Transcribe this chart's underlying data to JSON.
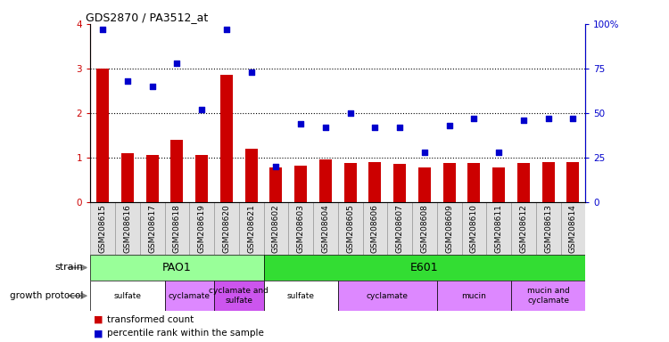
{
  "title": "GDS2870 / PA3512_at",
  "samples": [
    "GSM208615",
    "GSM208616",
    "GSM208617",
    "GSM208618",
    "GSM208619",
    "GSM208620",
    "GSM208621",
    "GSM208602",
    "GSM208603",
    "GSM208604",
    "GSM208605",
    "GSM208606",
    "GSM208607",
    "GSM208608",
    "GSM208609",
    "GSM208610",
    "GSM208611",
    "GSM208612",
    "GSM208613",
    "GSM208614"
  ],
  "red_values": [
    3.0,
    1.1,
    1.05,
    1.4,
    1.05,
    2.85,
    1.2,
    0.78,
    0.82,
    0.95,
    0.88,
    0.9,
    0.85,
    0.78,
    0.88,
    0.88,
    0.78,
    0.88,
    0.9,
    0.9
  ],
  "blue_values": [
    97,
    68,
    65,
    78,
    52,
    97,
    73,
    20,
    44,
    42,
    50,
    42,
    42,
    28,
    43,
    47,
    28,
    46,
    47,
    47
  ],
  "ylim_left": [
    0,
    4
  ],
  "ylim_right": [
    0,
    100
  ],
  "yticks_left": [
    0,
    1,
    2,
    3,
    4
  ],
  "yticks_right": [
    0,
    25,
    50,
    75,
    100
  ],
  "ytick_labels_right": [
    "0",
    "25",
    "50",
    "75",
    "100%"
  ],
  "red_color": "#cc0000",
  "blue_color": "#0000cc",
  "strain_items": [
    {
      "label": "PAO1",
      "start": 0,
      "end": 7,
      "color": "#99ff99"
    },
    {
      "label": "E601",
      "start": 7,
      "end": 20,
      "color": "#33dd33"
    }
  ],
  "protocol_items": [
    {
      "label": "sulfate",
      "start": 0,
      "end": 3,
      "color": "#ffffff"
    },
    {
      "label": "cyclamate",
      "start": 3,
      "end": 5,
      "color": "#dd88ff"
    },
    {
      "label": "cyclamate and\nsulfate",
      "start": 5,
      "end": 7,
      "color": "#cc55ee"
    },
    {
      "label": "sulfate",
      "start": 7,
      "end": 10,
      "color": "#ffffff"
    },
    {
      "label": "cyclamate",
      "start": 10,
      "end": 14,
      "color": "#dd88ff"
    },
    {
      "label": "mucin",
      "start": 14,
      "end": 17,
      "color": "#dd88ff"
    },
    {
      "label": "mucin and\ncyclamate",
      "start": 17,
      "end": 20,
      "color": "#dd88ff"
    }
  ],
  "bg_color": "#ffffff",
  "tick_bg_color": "#e0e0e0",
  "legend_items": [
    {
      "label": "transformed count",
      "color": "#cc0000"
    },
    {
      "label": "percentile rank within the sample",
      "color": "#0000cc"
    }
  ]
}
